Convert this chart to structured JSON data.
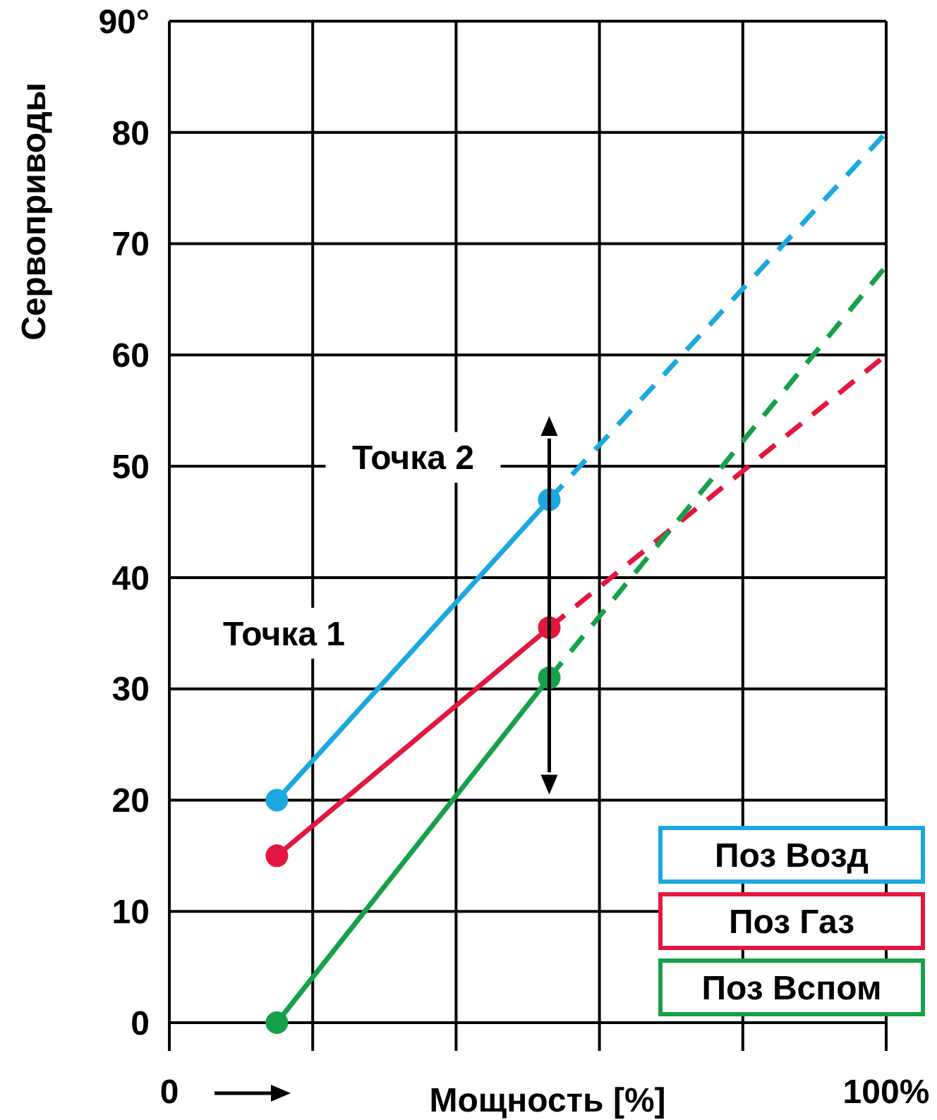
{
  "chart_data": {
    "type": "line",
    "ylabel": "Сервоприводы",
    "xlabel": "Мощность [%]",
    "xlim": [
      0,
      100
    ],
    "xticks": [
      {
        "value": 0,
        "label": "0"
      },
      {
        "value": 20,
        "label": null
      },
      {
        "value": 40,
        "label": null
      },
      {
        "value": 60,
        "label": null
      },
      {
        "value": 80,
        "label": null
      },
      {
        "value": 100,
        "label": "100%"
      }
    ],
    "ylim": [
      0,
      90
    ],
    "yticks": [
      0,
      10,
      20,
      30,
      40,
      50,
      60,
      70,
      80,
      {
        "value": 90,
        "label": "90°"
      }
    ],
    "grid": true,
    "legend": "bottom right",
    "marker": "circle",
    "line_style": "solid",
    "series": [
      {
        "name": "Поз Возд",
        "color": "#1ba8e0",
        "x": [
          15,
          53
        ],
        "values": [
          20,
          47
        ]
      },
      {
        "name": "Поз Газ",
        "color": "#e2173f",
        "x": [
          15,
          53
        ],
        "values": [
          15,
          35.5
        ]
      },
      {
        "name": "Поз Вспом",
        "color": "#16a04a",
        "x": [
          15,
          53
        ],
        "values": [
          0,
          31
        ]
      },
      {
        "color": "#1ba8e0",
        "x": [
          53,
          100
        ],
        "values": [
          47,
          80
        ],
        "marker": "none",
        "line_style": "dashed"
      },
      {
        "color": "#e2173f",
        "x": [
          53,
          100
        ],
        "values": [
          35.5,
          60
        ],
        "marker": "none",
        "line_style": "dashed"
      },
      {
        "color": "#16a04a",
        "x": [
          53,
          100
        ],
        "values": [
          31,
          68
        ],
        "marker": "none",
        "line_style": "dashed"
      }
    ],
    "annotations": [
      "Точка 1",
      "Точка 2"
    ]
  }
}
